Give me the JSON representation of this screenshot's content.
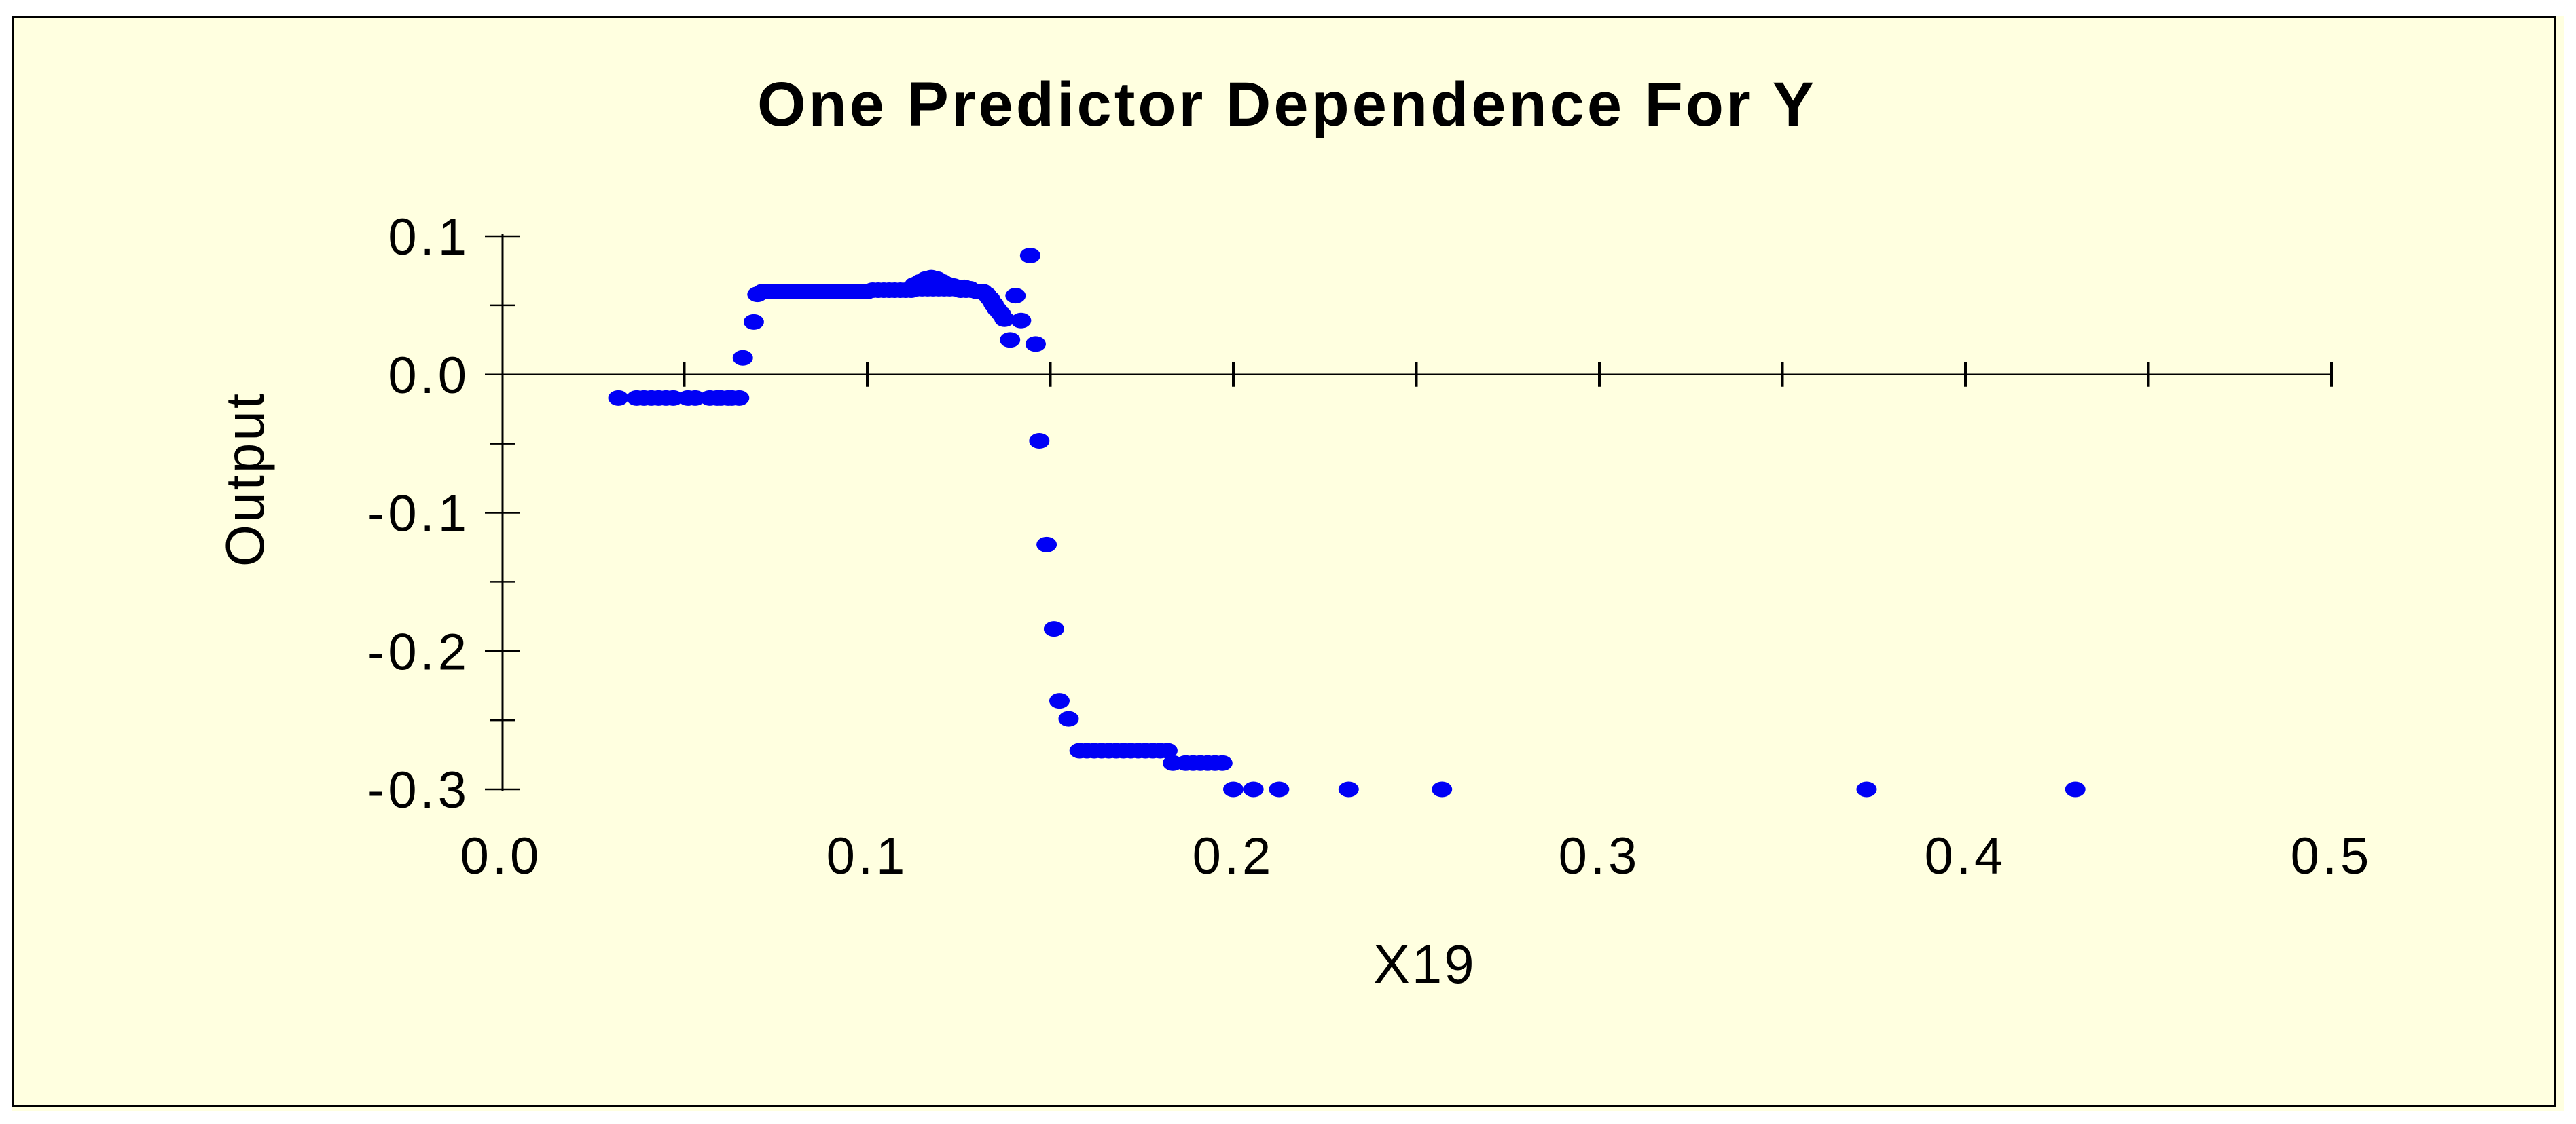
{
  "figure": {
    "page_color": "#FFFFFF",
    "background_color": "#FFFFE0",
    "border_color": "#000000",
    "axis_color": "#000000"
  },
  "chart_data": {
    "type": "scatter",
    "title": "One Predictor Dependence For Y",
    "xlabel": "X19",
    "ylabel": "Output",
    "xlim": [
      0.0,
      0.5
    ],
    "ylim": [
      -0.3,
      0.1
    ],
    "x_tick_labels": [
      "0.0",
      "0.1",
      "0.2",
      "0.3",
      "0.4",
      "0.5"
    ],
    "x_minor_tick_step": 0.05,
    "y_tick_labels": [
      "0.1",
      "0.0",
      "-0.1",
      "-0.2",
      "-0.3"
    ],
    "y_minor_tick_step": 0.05,
    "grid": "zero-line-only",
    "legend": "none",
    "marker_shape": "ellipse",
    "marker_color": "#0000F5",
    "points": [
      [
        0.032,
        -0.017
      ],
      [
        0.037,
        -0.017
      ],
      [
        0.039,
        -0.017
      ],
      [
        0.041,
        -0.017
      ],
      [
        0.043,
        -0.017
      ],
      [
        0.045,
        -0.017
      ],
      [
        0.047,
        -0.017
      ],
      [
        0.051,
        -0.017
      ],
      [
        0.053,
        -0.017
      ],
      [
        0.057,
        -0.017
      ],
      [
        0.059,
        -0.017
      ],
      [
        0.06,
        -0.017
      ],
      [
        0.062,
        -0.017
      ],
      [
        0.063,
        -0.017
      ],
      [
        0.065,
        -0.017
      ],
      [
        0.066,
        0.012
      ],
      [
        0.069,
        0.038
      ],
      [
        0.07,
        0.058
      ],
      [
        0.0715,
        0.06
      ],
      [
        0.073,
        0.06
      ],
      [
        0.0745,
        0.06
      ],
      [
        0.076,
        0.06
      ],
      [
        0.0775,
        0.06
      ],
      [
        0.079,
        0.06
      ],
      [
        0.0805,
        0.06
      ],
      [
        0.082,
        0.06
      ],
      [
        0.0835,
        0.06
      ],
      [
        0.085,
        0.06
      ],
      [
        0.0865,
        0.06
      ],
      [
        0.088,
        0.06
      ],
      [
        0.0895,
        0.06
      ],
      [
        0.091,
        0.06
      ],
      [
        0.0925,
        0.06
      ],
      [
        0.094,
        0.06
      ],
      [
        0.0955,
        0.06
      ],
      [
        0.097,
        0.06
      ],
      [
        0.0985,
        0.06
      ],
      [
        0.1,
        0.06
      ],
      [
        0.1015,
        0.061
      ],
      [
        0.103,
        0.061
      ],
      [
        0.1045,
        0.061
      ],
      [
        0.106,
        0.061
      ],
      [
        0.1075,
        0.061
      ],
      [
        0.109,
        0.061
      ],
      [
        0.1105,
        0.061
      ],
      [
        0.112,
        0.061
      ],
      [
        0.1135,
        0.062
      ],
      [
        0.115,
        0.062
      ],
      [
        0.1165,
        0.062
      ],
      [
        0.118,
        0.062
      ],
      [
        0.1195,
        0.062
      ],
      [
        0.121,
        0.062
      ],
      [
        0.1225,
        0.062
      ],
      [
        0.124,
        0.062
      ],
      [
        0.1255,
        0.061
      ],
      [
        0.127,
        0.061
      ],
      [
        0.1285,
        0.061
      ],
      [
        0.13,
        0.06
      ],
      [
        0.1315,
        0.06
      ],
      [
        0.113,
        0.065
      ],
      [
        0.1145,
        0.067
      ],
      [
        0.116,
        0.069
      ],
      [
        0.1175,
        0.07
      ],
      [
        0.119,
        0.069
      ],
      [
        0.1205,
        0.067
      ],
      [
        0.122,
        0.065
      ],
      [
        0.1235,
        0.064
      ],
      [
        0.125,
        0.063
      ],
      [
        0.1265,
        0.063
      ],
      [
        0.128,
        0.062
      ],
      [
        0.1325,
        0.058
      ],
      [
        0.1335,
        0.055
      ],
      [
        0.1345,
        0.051
      ],
      [
        0.1355,
        0.047
      ],
      [
        0.1365,
        0.044
      ],
      [
        0.1375,
        0.04
      ],
      [
        0.139,
        0.025
      ],
      [
        0.1405,
        0.057
      ],
      [
        0.142,
        0.039
      ],
      [
        0.1445,
        0.086
      ],
      [
        0.146,
        0.022
      ],
      [
        0.147,
        -0.048
      ],
      [
        0.149,
        -0.123
      ],
      [
        0.151,
        -0.184
      ],
      [
        0.1525,
        -0.236
      ],
      [
        0.155,
        -0.249
      ],
      [
        0.158,
        -0.272
      ],
      [
        0.16,
        -0.272
      ],
      [
        0.162,
        -0.272
      ],
      [
        0.164,
        -0.272
      ],
      [
        0.166,
        -0.272
      ],
      [
        0.168,
        -0.272
      ],
      [
        0.17,
        -0.272
      ],
      [
        0.172,
        -0.272
      ],
      [
        0.174,
        -0.272
      ],
      [
        0.176,
        -0.272
      ],
      [
        0.178,
        -0.272
      ],
      [
        0.18,
        -0.272
      ],
      [
        0.182,
        -0.272
      ],
      [
        0.1835,
        -0.281
      ],
      [
        0.187,
        -0.281
      ],
      [
        0.189,
        -0.281
      ],
      [
        0.191,
        -0.281
      ],
      [
        0.193,
        -0.281
      ],
      [
        0.195,
        -0.281
      ],
      [
        0.197,
        -0.281
      ],
      [
        0.2,
        -0.3
      ],
      [
        0.2055,
        -0.3
      ],
      [
        0.2125,
        -0.3
      ],
      [
        0.2315,
        -0.3
      ],
      [
        0.257,
        -0.3
      ],
      [
        0.373,
        -0.3
      ],
      [
        0.43,
        -0.3
      ]
    ]
  }
}
